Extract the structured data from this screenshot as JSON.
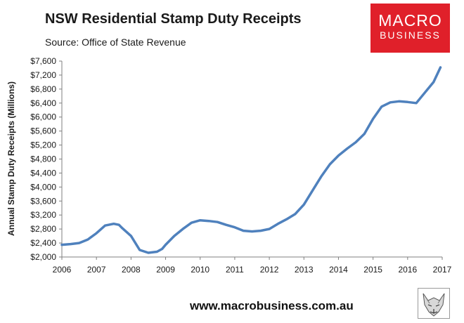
{
  "header": {
    "title": "NSW Residential Stamp Duty Receipts",
    "source": "Source: Office of State Revenue"
  },
  "logo": {
    "line1": "MACRO",
    "line2": "BUSINESS"
  },
  "footer": {
    "url": "www.macrobusiness.com.au"
  },
  "colors": {
    "line": "#4f81bd",
    "axis": "#7f7f7f",
    "logo_bg": "#e0202a"
  },
  "chart_data": {
    "type": "line",
    "title": "NSW Residential Stamp Duty Receipts",
    "ylabel": "Annual Stamp Duty Receipts (Millions)",
    "xlabel": "",
    "ylim": [
      2000,
      7600
    ],
    "xlim": [
      2006,
      2017
    ],
    "y_ticks": [
      "$2,000",
      "$2,400",
      "$2,800",
      "$3,200",
      "$3,600",
      "$4,000",
      "$4,400",
      "$4,800",
      "$5,200",
      "$5,600",
      "$6,000",
      "$6,400",
      "$6,800",
      "$7,200",
      "$7,600"
    ],
    "y_tick_values": [
      2000,
      2400,
      2800,
      3200,
      3600,
      4000,
      4400,
      4800,
      5200,
      5600,
      6000,
      6400,
      6800,
      7200,
      7600
    ],
    "x_ticks": [
      "2006",
      "2007",
      "2008",
      "2009",
      "2010",
      "2011",
      "2012",
      "2013",
      "2014",
      "2015",
      "2016",
      "2017"
    ],
    "x_tick_values": [
      2006,
      2007,
      2008,
      2009,
      2010,
      2011,
      2012,
      2013,
      2014,
      2015,
      2016,
      2017
    ],
    "grid": false,
    "series": [
      {
        "name": "Annual Stamp Duty Receipts",
        "x": [
          2006.0,
          2006.25,
          2006.5,
          2006.75,
          2007.0,
          2007.25,
          2007.5,
          2007.65,
          2007.75,
          2008.0,
          2008.25,
          2008.5,
          2008.75,
          2008.9,
          2009.0,
          2009.25,
          2009.5,
          2009.75,
          2010.0,
          2010.25,
          2010.5,
          2010.75,
          2011.0,
          2011.25,
          2011.5,
          2011.75,
          2012.0,
          2012.25,
          2012.5,
          2012.75,
          2013.0,
          2013.25,
          2013.5,
          2013.75,
          2014.0,
          2014.25,
          2014.5,
          2014.75,
          2015.0,
          2015.25,
          2015.5,
          2015.75,
          2016.0,
          2016.25,
          2016.5,
          2016.75,
          2016.95
        ],
        "values": [
          2350,
          2370,
          2400,
          2500,
          2680,
          2900,
          2950,
          2920,
          2820,
          2600,
          2200,
          2120,
          2150,
          2230,
          2350,
          2600,
          2800,
          2980,
          3050,
          3030,
          3000,
          2920,
          2850,
          2750,
          2730,
          2750,
          2800,
          2950,
          3080,
          3230,
          3500,
          3900,
          4300,
          4650,
          4900,
          5100,
          5280,
          5520,
          5950,
          6300,
          6420,
          6450,
          6430,
          6400,
          6700,
          7000,
          7420
        ]
      }
    ]
  }
}
